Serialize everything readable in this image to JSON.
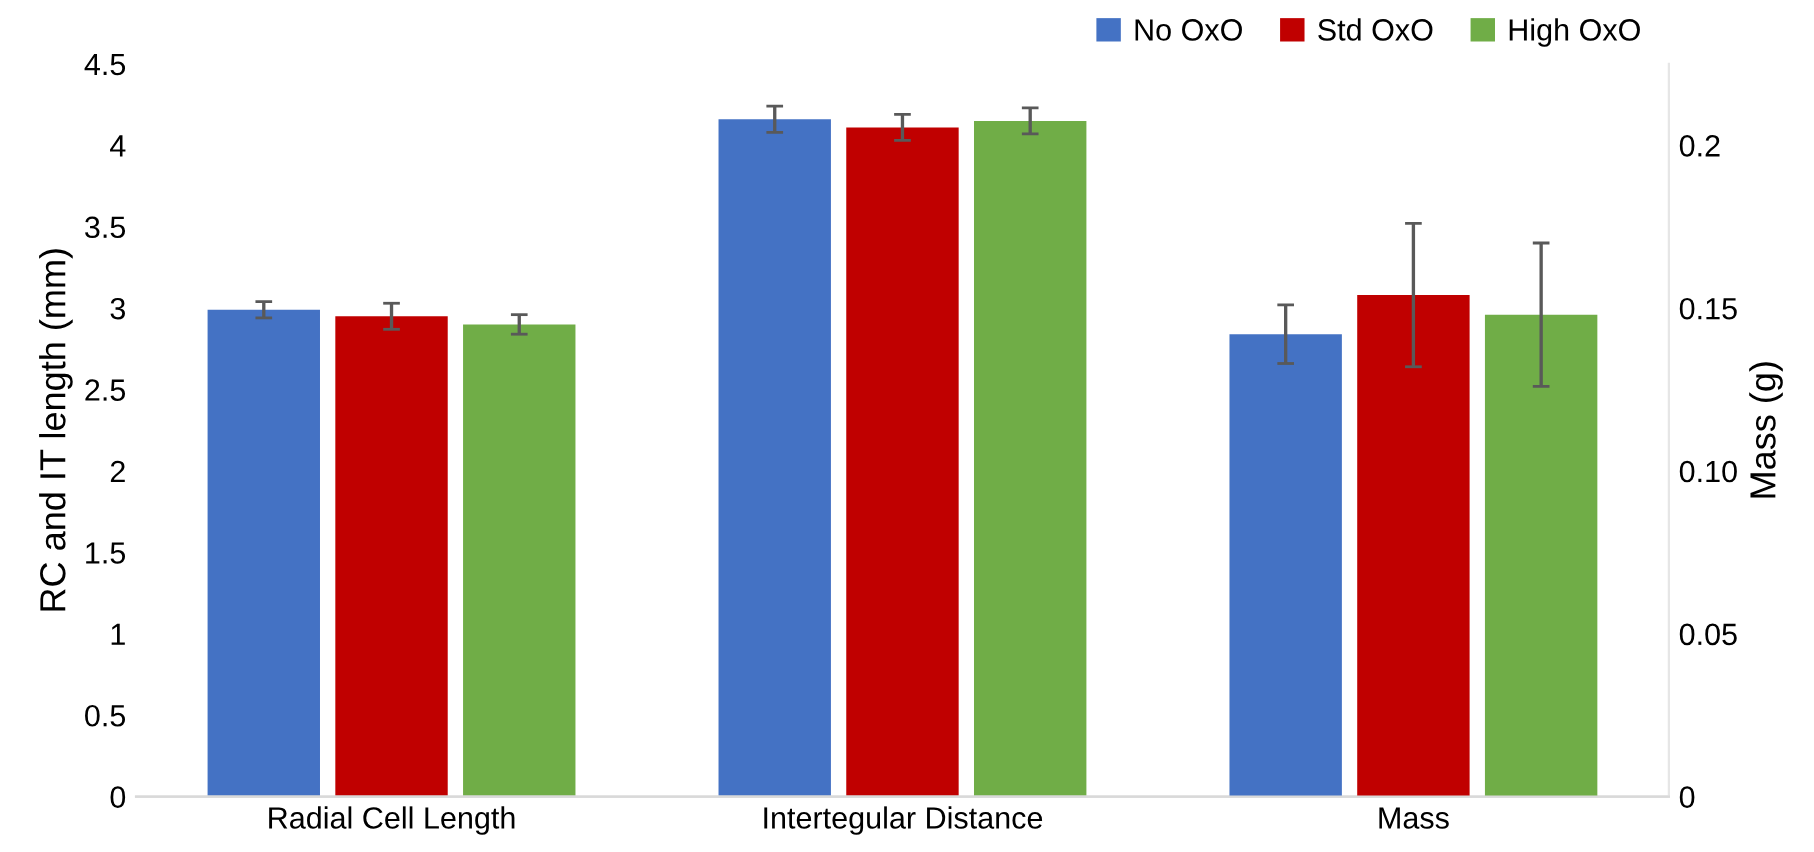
{
  "chart_data": {
    "type": "bar",
    "ylabel": "RC and IT length (mm)",
    "y2label": "Mass (g)",
    "categories": [
      "Radial Cell Length",
      "Intertegular Distance",
      "Mass"
    ],
    "series": [
      {
        "name": "No OxO",
        "color": "#4472c4",
        "values": [
          2.99,
          4.16,
          null
        ],
        "errors": [
          0.05,
          0.08,
          null
        ]
      },
      {
        "name": "Std OxO",
        "color": "#c00000",
        "values": [
          2.95,
          4.11,
          null
        ],
        "errors": [
          0.08,
          0.08,
          null
        ]
      },
      {
        "name": "High OxO",
        "color": "#70ad47",
        "values": [
          2.9,
          4.15,
          null
        ],
        "errors": [
          0.06,
          0.08,
          null
        ]
      },
      {
        "color": "#4472c4",
        "axis": "y2",
        "values": [
          null,
          null,
          0.142
        ],
        "errors": [
          null,
          null,
          0.009
        ]
      },
      {
        "color": "#c00000",
        "axis": "y2",
        "values": [
          null,
          null,
          0.154
        ],
        "errors": [
          null,
          null,
          0.022
        ]
      },
      {
        "color": "#70ad47",
        "axis": "y2",
        "values": [
          null,
          null,
          0.148
        ],
        "errors": [
          null,
          null,
          0.022
        ]
      }
    ],
    "ylim": [
      0,
      4.5
    ],
    "yticks": [
      0,
      {
        "value": 0.5,
        "label": "0.5"
      },
      1,
      {
        "value": 1.5,
        "label": "1.5"
      },
      2,
      {
        "value": 2.5,
        "label": "2.5"
      },
      3,
      {
        "value": 3.5,
        "label": "3.5"
      },
      4,
      {
        "value": 4.5,
        "label": "4.5"
      }
    ],
    "y2lim": [
      0,
      0.225
    ],
    "y2ticks": [
      0,
      {
        "value": 0.05,
        "label": "0.05"
      },
      {
        "value": 0.1,
        "label": "0.10"
      },
      {
        "value": 0.15,
        "label": "0.15"
      },
      {
        "value": 0.2,
        "label": "0.2"
      }
    ],
    "grid": false,
    "legend": "top right"
  }
}
